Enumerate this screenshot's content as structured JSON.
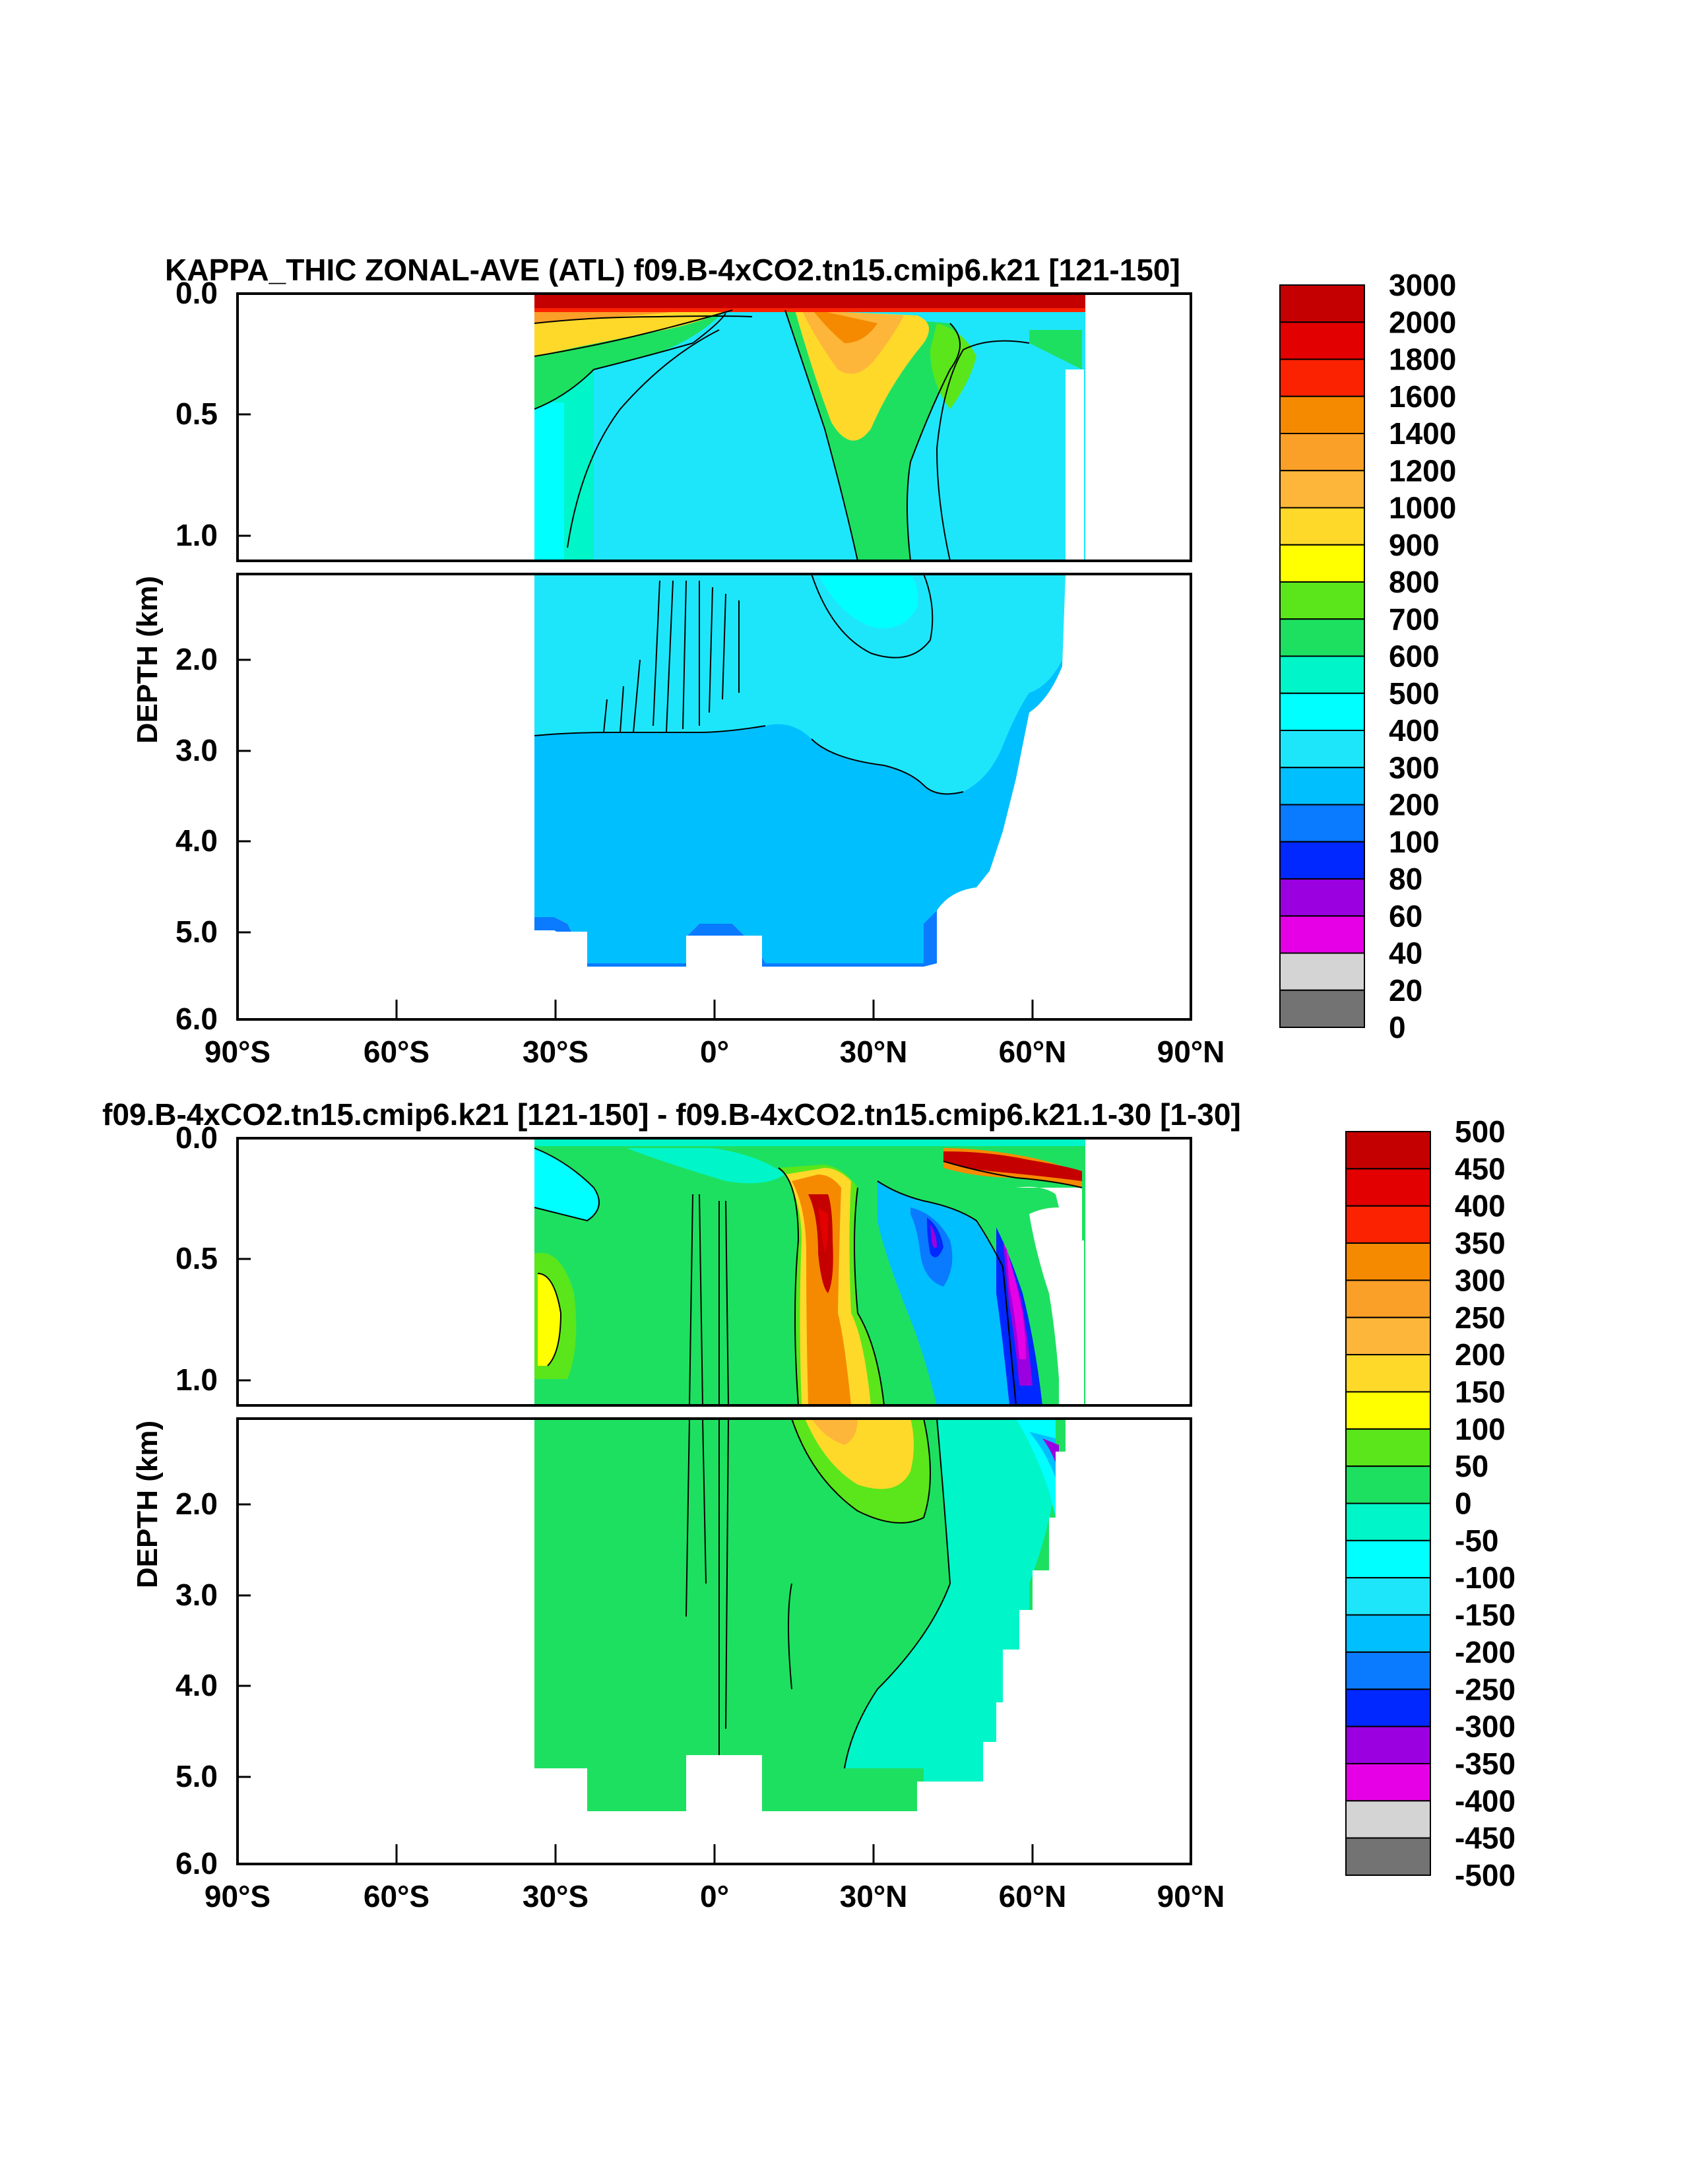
{
  "chart_data": [
    {
      "type": "contour",
      "title": "KAPPA_THIC ZONAL-AVE (ATL) f09.B-4xCO2.tn15.cmip6.k21 [121-150]",
      "ylabel": "DEPTH (km)",
      "xlim": [
        -90,
        90
      ],
      "ylim": [
        0,
        6
      ],
      "x_ticks": [
        {
          "value": -90,
          "label": "90°S"
        },
        {
          "value": -60,
          "label": "60°S"
        },
        {
          "value": -30,
          "label": "30°S"
        },
        {
          "value": 0,
          "label": "0°"
        },
        {
          "value": 30,
          "label": "30°N"
        },
        {
          "value": 60,
          "label": "60°N"
        },
        {
          "value": 90,
          "label": "90°N"
        }
      ],
      "y_ticks_upper": [
        {
          "value": 0.0,
          "label": "0.0"
        },
        {
          "value": 0.5,
          "label": "0.5"
        },
        {
          "value": 1.0,
          "label": "1.0"
        }
      ],
      "y_ticks_lower": [
        {
          "value": 2.0,
          "label": "2.0"
        },
        {
          "value": 3.0,
          "label": "3.0"
        },
        {
          "value": 4.0,
          "label": "4.0"
        },
        {
          "value": 5.0,
          "label": "5.0"
        },
        {
          "value": 6.0,
          "label": "6.0"
        }
      ],
      "colorbar": {
        "labels": [
          "3000",
          "2000",
          "1800",
          "1600",
          "1400",
          "1200",
          "1000",
          "900",
          "800",
          "700",
          "600",
          "500",
          "400",
          "300",
          "200",
          "100",
          "80",
          "60",
          "40",
          "20",
          "0"
        ],
        "colors": [
          "#c40000",
          "#e20000",
          "#fa2200",
          "#f58a00",
          "#fa9f28",
          "#fdb63a",
          "#ffd92a",
          "#ffff00",
          "#5ae61a",
          "#1ee060",
          "#00f5c8",
          "#00ffff",
          "#1ee6fa",
          "#00bfff",
          "#0a7aff",
          "#0028ff",
          "#9b00e0",
          "#e600e6",
          "#d4d4d4",
          "#737373"
        ]
      }
    },
    {
      "type": "contour",
      "title": "f09.B-4xCO2.tn15.cmip6.k21 [121-150] - f09.B-4xCO2.tn15.cmip6.k21.1-30 [1-30]",
      "ylabel": "DEPTH (km)",
      "xlim": [
        -90,
        90
      ],
      "ylim": [
        0,
        6
      ],
      "x_ticks": [
        {
          "value": -90,
          "label": "90°S"
        },
        {
          "value": -60,
          "label": "60°S"
        },
        {
          "value": -30,
          "label": "30°S"
        },
        {
          "value": 0,
          "label": "0°"
        },
        {
          "value": 30,
          "label": "30°N"
        },
        {
          "value": 60,
          "label": "60°N"
        },
        {
          "value": 90,
          "label": "90°N"
        }
      ],
      "y_ticks_upper": [
        {
          "value": 0.0,
          "label": "0.0"
        },
        {
          "value": 0.5,
          "label": "0.5"
        },
        {
          "value": 1.0,
          "label": "1.0"
        }
      ],
      "y_ticks_lower": [
        {
          "value": 2.0,
          "label": "2.0"
        },
        {
          "value": 3.0,
          "label": "3.0"
        },
        {
          "value": 4.0,
          "label": "4.0"
        },
        {
          "value": 5.0,
          "label": "5.0"
        },
        {
          "value": 6.0,
          "label": "6.0"
        }
      ],
      "colorbar": {
        "labels": [
          "500",
          "450",
          "400",
          "350",
          "300",
          "250",
          "200",
          "150",
          "100",
          "50",
          "0",
          "-50",
          "-100",
          "-150",
          "-200",
          "-250",
          "-300",
          "-350",
          "-400",
          "-450",
          "-500"
        ],
        "colors": [
          "#c40000",
          "#e20000",
          "#fa2200",
          "#f58a00",
          "#fa9f28",
          "#fdb63a",
          "#ffd92a",
          "#ffff00",
          "#5ae61a",
          "#1ee060",
          "#00f5c8",
          "#00ffff",
          "#1ee6fa",
          "#00bfff",
          "#0a7aff",
          "#0028ff",
          "#9b00e0",
          "#e600e6",
          "#d4d4d4",
          "#737373"
        ]
      }
    }
  ]
}
